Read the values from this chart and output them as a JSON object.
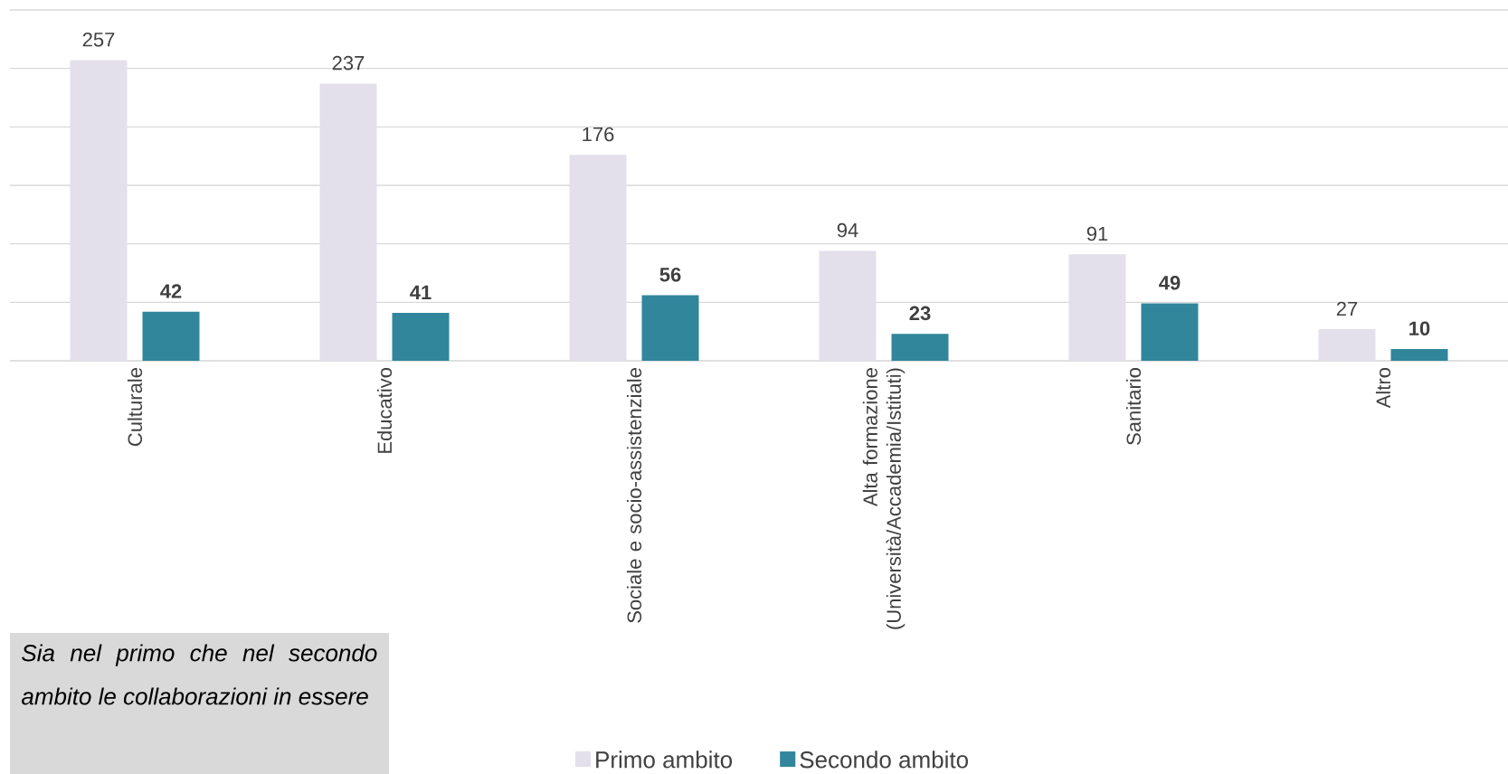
{
  "chart_data": {
    "type": "bar",
    "categories": [
      "Culturale",
      "Educativo",
      "Sociale e socio-assistenziale",
      "Alta formazione (Università/Accademia/Istituti)",
      "Sanitario",
      "Altro"
    ],
    "series": [
      {
        "name": "Primo ambito",
        "color": "#e3dfeb",
        "values": [
          257,
          237,
          176,
          94,
          91,
          27
        ]
      },
      {
        "name": "Secondo ambito",
        "color": "#31869b",
        "values": [
          42,
          41,
          56,
          23,
          49,
          10
        ]
      }
    ],
    "ylim": [
      0,
      300
    ],
    "yticks": [
      {
        "value": 0,
        "label": null
      },
      {
        "value": 50,
        "label": null
      },
      {
        "value": 100,
        "label": null
      },
      {
        "value": 150,
        "label": null
      },
      {
        "value": 200,
        "label": null
      },
      {
        "value": 250,
        "label": null
      },
      {
        "value": 300,
        "label": null
      }
    ],
    "tick_labels": "x",
    "grid": "y",
    "legend": "bottom",
    "data_labels": true,
    "annotations": [
      "Sia nel primo che nel secondo ambito le collaborazioni in essere"
    ]
  }
}
